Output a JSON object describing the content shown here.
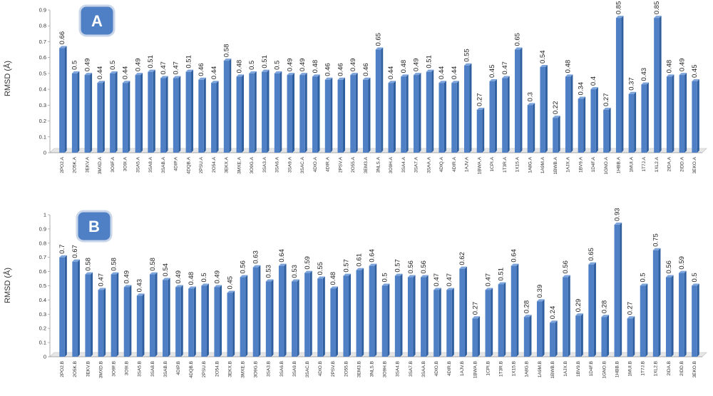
{
  "chart_data": [
    {
      "type": "bar",
      "panel_label": "A",
      "ylabel": "RMSD (Å)",
      "ylim": [
        0,
        0.9
      ],
      "yticks": [
        "0",
        "0.1",
        "0.2",
        "0.3",
        "0.4",
        "0.5",
        "0.6",
        "0.7",
        "0.8",
        "0.9"
      ],
      "bar_color": "#4f7fc4",
      "categories": [
        "2PO2.A",
        "2O5K.A",
        "3EKV.A",
        "3MXD.A",
        "3O9F.A",
        "3O9I.A",
        "3SA5.A",
        "3SA8.A",
        "3SAB.A",
        "4DIP.A",
        "4DQB.A",
        "2PSU.A",
        "2O54.A",
        "3EKX.A",
        "3MXE.A",
        "3O9G.A",
        "3SA3.A",
        "3SA6.A",
        "3SA9.A",
        "3SAC.A",
        "4DIO.A",
        "4DIR.A",
        "2PSV.A",
        "2O55.A",
        "3EM3.A",
        "3NLS.A",
        "3O9H.A",
        "3SA4.A",
        "3SA7.A",
        "3SAA.A",
        "4DIQ.A",
        "4DIR.A",
        "1AJV.A",
        "1BWA.A",
        "1CPI.A",
        "1T3R.A",
        "1X15.A",
        "1A8G.A",
        "1A9M.A",
        "1BWB.A",
        "1AJX.A",
        "1BV9.A",
        "1D4F.A",
        "1GNO.A",
        "1HBB.A",
        "1MUI.A",
        "1T7J.A",
        "1XL2.A",
        "2IDA.A",
        "2IDD.A",
        "3EKO.A"
      ],
      "values": [
        0.66,
        0.5,
        0.49,
        0.44,
        0.5,
        0.44,
        0.49,
        0.51,
        0.47,
        0.47,
        0.51,
        0.46,
        0.44,
        0.58,
        0.48,
        0.5,
        0.51,
        0.5,
        0.49,
        0.49,
        0.48,
        0.46,
        0.46,
        0.49,
        0.46,
        0.65,
        0.44,
        0.48,
        0.49,
        0.51,
        0.44,
        0.44,
        0.55,
        0.27,
        0.45,
        0.47,
        0.65,
        0.3,
        0.54,
        0.22,
        0.48,
        0.34,
        0.4,
        0.27,
        0.85,
        0.37,
        0.43,
        0.85,
        0.48,
        0.49,
        0.45
      ],
      "data_labels": [
        "0.66",
        "0.5",
        "0.49",
        "0.44",
        "0.5",
        "0.44",
        "0.49",
        "0.51",
        "0.47",
        "0.47",
        "0.51",
        "0.46",
        "0.44",
        "0.58",
        "0.48",
        "0.5",
        "0.51",
        "0.5",
        "0.49",
        "0.49",
        "0.48",
        "0.46",
        "0.46",
        "0.49",
        "0.46",
        "0.65",
        "0.44",
        "0.48",
        "0.49",
        "0.51",
        "0.44",
        "0.44",
        "0.55",
        "0.27",
        "0.45",
        "0.47",
        "0.65",
        "0.3",
        "0.54",
        "0.22",
        "0.48",
        "0.34",
        "0.4",
        "0.27",
        "0.85",
        "0.37",
        "0.43",
        "0.85",
        "0.48",
        "0.49",
        "0.45"
      ]
    },
    {
      "type": "bar",
      "panel_label": "B",
      "ylabel": "RMSD (Å)",
      "ylim": [
        0,
        1
      ],
      "yticks": [
        "0",
        "0.1",
        "0.2",
        "0.3",
        "0.4",
        "0.5",
        "0.6",
        "0.7",
        "0.8",
        "0.9",
        "1"
      ],
      "bar_color": "#4f7fc4",
      "categories": [
        "2PO2.B",
        "2O5K.B",
        "3EKV.B",
        "3MXD.B",
        "3O9F.B",
        "3O9I.B",
        "3SA5.B",
        "3SA8.B",
        "3SAB.B",
        "4DIP.B",
        "4DQB.B",
        "2PSU.B",
        "2O54.B",
        "3EKX.B",
        "3MXE.B",
        "3O9G.B",
        "3SA3.B",
        "3SA6.B",
        "3SA9.B",
        "3SAC.B",
        "4DIO.B",
        "2PSV.B",
        "2O55.B",
        "3EM3.B",
        "3NLS.B",
        "3O9H.B",
        "3SA4.B",
        "3SA7.B",
        "3SAA.B",
        "4DIO.B",
        "4DIR.B",
        "1AJV.B",
        "1BWA.B",
        "1CPI.B",
        "1T3R.B",
        "1X15.B",
        "1A8G.B",
        "1A9M.B",
        "1BWB.B",
        "1AJX.B",
        "1BV9.B",
        "1D4F.B",
        "1GNO.B",
        "1HBB.B",
        "1MUI.B",
        "1T7J.B",
        "1XL2.B",
        "2IDA.B",
        "2IDD.B",
        "3EKO.B"
      ],
      "values": [
        0.7,
        0.67,
        0.58,
        0.47,
        0.58,
        0.49,
        0.43,
        0.58,
        0.54,
        0.49,
        0.48,
        0.5,
        0.49,
        0.45,
        0.56,
        0.63,
        0.53,
        0.64,
        0.53,
        0.59,
        0.55,
        0.48,
        0.57,
        0.61,
        0.64,
        0.5,
        0.57,
        0.56,
        0.56,
        0.47,
        0.47,
        0.62,
        0.27,
        0.47,
        0.51,
        0.64,
        0.28,
        0.39,
        0.24,
        0.56,
        0.29,
        0.65,
        0.28,
        0.93,
        0.27,
        0.5,
        0.75,
        0.56,
        0.59,
        0.5
      ],
      "data_labels": [
        "0.7",
        "0.67",
        "0.58",
        "0.47",
        "0.58",
        "0.49",
        "0.43",
        "0.58",
        "0.54",
        "0.49",
        "0.48",
        "0.5",
        "0.49",
        "0.45",
        "0.56",
        "0.63",
        "0.53",
        "0.64",
        "0.53",
        "0.59",
        "0.55",
        "0.48",
        "0.57",
        "0.61",
        "0.64",
        "0.5",
        "0.57",
        "0.56",
        "0.56",
        "0.47",
        "0.47",
        "0.62",
        "0.27",
        "0.47",
        "0.51",
        "0.64",
        "0.28",
        "0.39",
        "0.24",
        "0.56",
        "0.29",
        "0.65",
        "0.28",
        "0.93",
        "0.27",
        "0.5",
        "0.75",
        "0.56",
        "0.59",
        "0.5"
      ]
    }
  ]
}
